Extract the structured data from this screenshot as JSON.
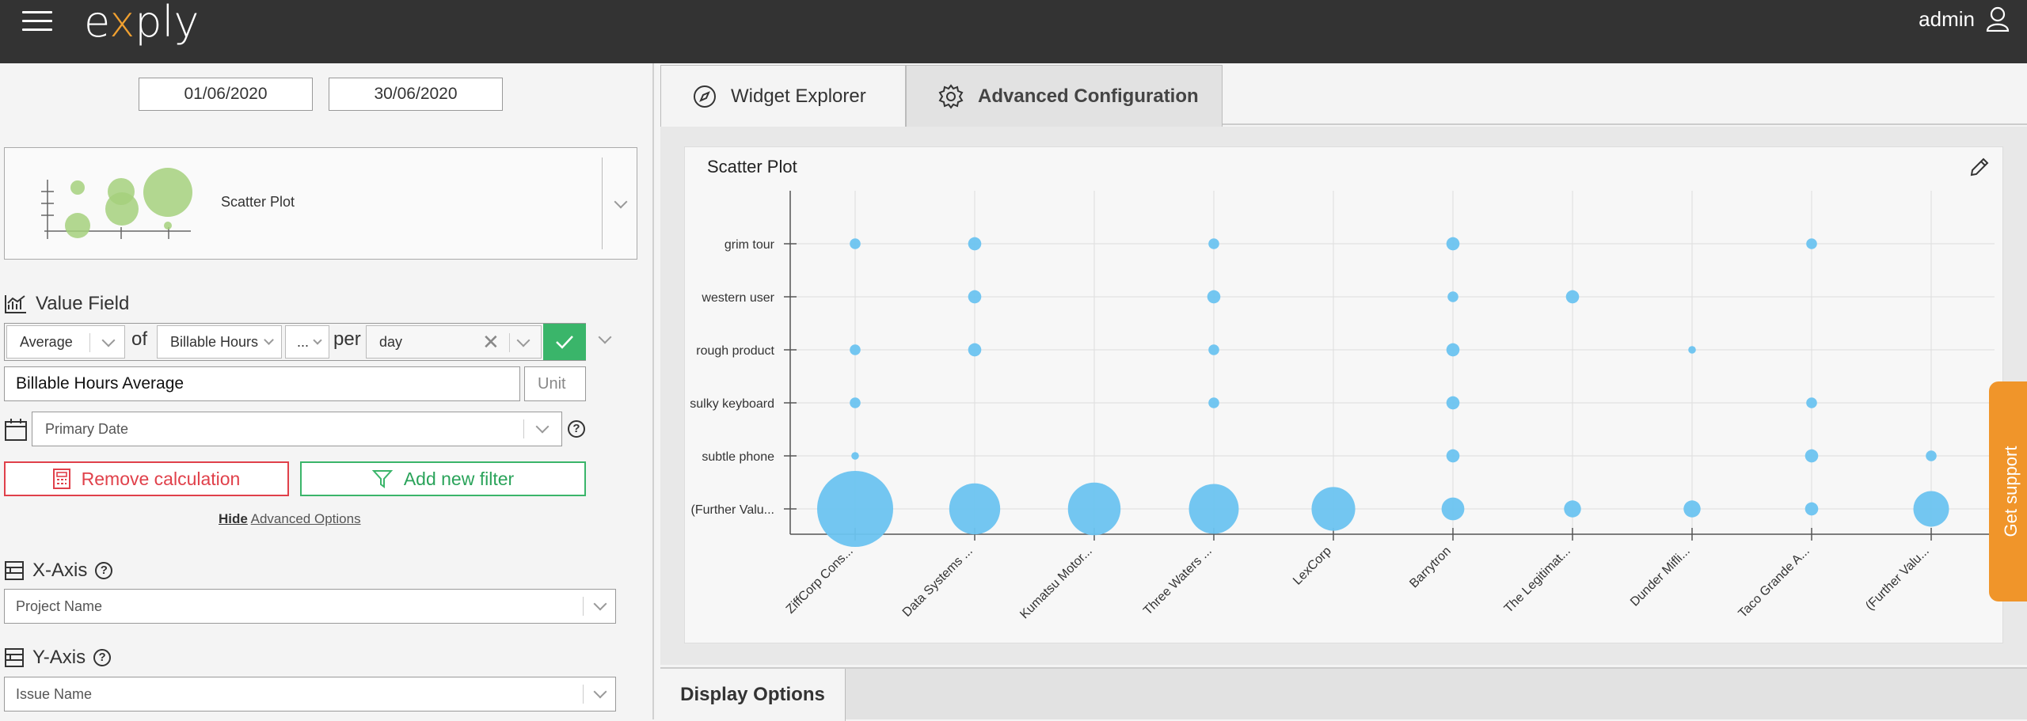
{
  "header": {
    "logo_text_pre": "e",
    "logo_text_x": "x",
    "logo_text_post": "ply",
    "user_name": "admin"
  },
  "dates": {
    "start": "01/06/2020",
    "end": "30/06/2020"
  },
  "chart_type": {
    "label": "Scatter Plot"
  },
  "value_field": {
    "title": "Value Field",
    "aggregation": "Average",
    "of_label": "of",
    "field": "Billable Hours",
    "ellipsis": "...",
    "per_label": "per",
    "period": "day",
    "name_value": "Billable Hours Average",
    "unit_placeholder": "Unit",
    "date_field": "Primary Date"
  },
  "actions": {
    "remove": "Remove calculation",
    "add_filter": "Add new filter",
    "hide": "Hide",
    "advanced": "Advanced Options"
  },
  "x_axis": {
    "title": "X-Axis",
    "value": "Project Name"
  },
  "y_axis": {
    "title": "Y-Axis",
    "value": "Issue Name"
  },
  "tabs": {
    "widget_explorer": "Widget Explorer",
    "advanced_configuration": "Advanced Configuration"
  },
  "card": {
    "title": "Scatter Plot"
  },
  "support": {
    "label": "Get support"
  },
  "bottom": {
    "display_options": "Display Options"
  },
  "colors": {
    "accent_green": "#3ab56a",
    "danger_red": "#e0404a",
    "bubble": "#6cc3f0",
    "support": "#f0952a",
    "header": "#333333"
  },
  "chart_data": {
    "type": "scatter",
    "title": "Scatter Plot",
    "x_categories": [
      "ZiffCorp Cons...",
      "Data Systems ...",
      "Kumatsu Motor...",
      "Three Waters ...",
      "LexCorp",
      "Barrytron",
      "The Legitimat...",
      "Dunder Mifli...",
      "Taco Grande A...",
      "(Further Valu..."
    ],
    "y_categories": [
      "grim tour",
      "western user",
      "rough product",
      "sulky keyboard",
      "subtle phone",
      "(Further Valu..."
    ],
    "points": [
      {
        "x": "ZiffCorp Cons...",
        "y": "grim tour",
        "size": 2
      },
      {
        "x": "ZiffCorp Cons...",
        "y": "rough product",
        "size": 2
      },
      {
        "x": "ZiffCorp Cons...",
        "y": "sulky keyboard",
        "size": 2
      },
      {
        "x": "ZiffCorp Cons...",
        "y": "subtle phone",
        "size": 1
      },
      {
        "x": "ZiffCorp Cons...",
        "y": "(Further Valu...",
        "size": 100
      },
      {
        "x": "Data Systems ...",
        "y": "grim tour",
        "size": 3
      },
      {
        "x": "Data Systems ...",
        "y": "western user",
        "size": 3
      },
      {
        "x": "Data Systems ...",
        "y": "rough product",
        "size": 3
      },
      {
        "x": "Data Systems ...",
        "y": "(Further Valu...",
        "size": 45
      },
      {
        "x": "Kumatsu Motor...",
        "y": "(Further Valu...",
        "size": 48
      },
      {
        "x": "Three Waters ...",
        "y": "grim tour",
        "size": 2
      },
      {
        "x": "Three Waters ...",
        "y": "western user",
        "size": 3
      },
      {
        "x": "Three Waters ...",
        "y": "rough product",
        "size": 2
      },
      {
        "x": "Three Waters ...",
        "y": "sulky keyboard",
        "size": 2
      },
      {
        "x": "Three Waters ...",
        "y": "(Further Valu...",
        "size": 43
      },
      {
        "x": "LexCorp",
        "y": "(Further Valu...",
        "size": 33
      },
      {
        "x": "Barrytron",
        "y": "grim tour",
        "size": 3
      },
      {
        "x": "Barrytron",
        "y": "western user",
        "size": 2
      },
      {
        "x": "Barrytron",
        "y": "rough product",
        "size": 3
      },
      {
        "x": "Barrytron",
        "y": "sulky keyboard",
        "size": 3
      },
      {
        "x": "Barrytron",
        "y": "subtle phone",
        "size": 3
      },
      {
        "x": "Barrytron",
        "y": "(Further Valu...",
        "size": 9
      },
      {
        "x": "The Legitimat...",
        "y": "western user",
        "size": 3
      },
      {
        "x": "The Legitimat...",
        "y": "(Further Valu...",
        "size": 5
      },
      {
        "x": "Dunder Mifli...",
        "y": "rough product",
        "size": 1
      },
      {
        "x": "Dunder Mifli...",
        "y": "(Further Valu...",
        "size": 5
      },
      {
        "x": "Taco Grande A...",
        "y": "grim tour",
        "size": 2
      },
      {
        "x": "Taco Grande A...",
        "y": "sulky keyboard",
        "size": 2
      },
      {
        "x": "Taco Grande A...",
        "y": "subtle phone",
        "size": 3
      },
      {
        "x": "Taco Grande A...",
        "y": "(Further Valu...",
        "size": 3
      },
      {
        "x": "(Further Valu...",
        "y": "subtle phone",
        "size": 2
      },
      {
        "x": "(Further Valu...",
        "y": "(Further Valu...",
        "size": 22
      }
    ],
    "xlabel": "",
    "ylabel": "",
    "grid": true,
    "legend": "none"
  }
}
